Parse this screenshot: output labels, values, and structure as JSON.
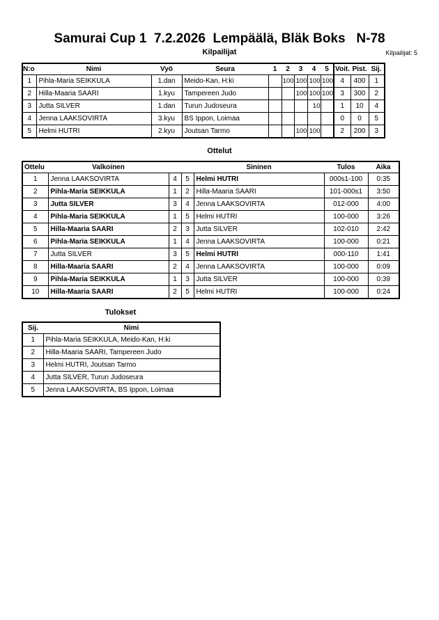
{
  "title": "Samurai Cup 1  7.2.2026  Lempäälä, Bläk Boks   N-78",
  "competitors_heading": "Kilpailijat",
  "competitors_count": "Kilpailijat: 5",
  "competitors": {
    "headers": [
      "N:o",
      "Nimi",
      "Vyö",
      "Seura",
      "1",
      "2",
      "3",
      "4",
      "5",
      "Voit.",
      "Pist.",
      "Sij."
    ],
    "rows": [
      {
        "no": "1",
        "name": "Pihla-Maria SEIKKULA",
        "belt": "1.dan",
        "club": "Meido-Kan, H:ki",
        "s": [
          "",
          "100",
          "100",
          "100",
          "100"
        ],
        "wins": "4",
        "points": "400",
        "rank": "1"
      },
      {
        "no": "2",
        "name": "Hilla-Maaria SAARI",
        "belt": "1.kyu",
        "club": "Tampereen Judo",
        "s": [
          "",
          "",
          "100",
          "100",
          "100"
        ],
        "wins": "3",
        "points": "300",
        "rank": "2"
      },
      {
        "no": "3",
        "name": "Jutta SILVER",
        "belt": "1.dan",
        "club": "Turun Judoseura",
        "s": [
          "",
          "",
          "",
          "10",
          ""
        ],
        "wins": "1",
        "points": "10",
        "rank": "4"
      },
      {
        "no": "4",
        "name": "Jenna LAAKSOVIRTA",
        "belt": "3.kyu",
        "club": "BS Ippon, Loimaa",
        "s": [
          "",
          "",
          "",
          "",
          ""
        ],
        "wins": "0",
        "points": "0",
        "rank": "5"
      },
      {
        "no": "5",
        "name": "Helmi HUTRI",
        "belt": "2.kyu",
        "club": "Joutsan Tarmo",
        "s": [
          "",
          "",
          "100",
          "100",
          ""
        ],
        "wins": "2",
        "points": "200",
        "rank": "3"
      }
    ]
  },
  "matches_heading": "Ottelut",
  "matches": {
    "headers": [
      "Ottelu",
      "Valkoinen",
      "Sininen",
      "Tulos",
      "Aika"
    ],
    "rows": [
      {
        "no": "1",
        "white": "Jenna LAAKSOVIRTA",
        "wn": "4",
        "bn": "5",
        "blue": "Helmi HUTRI",
        "result": "000s1-100",
        "time": "0:35",
        "winner": "blue"
      },
      {
        "no": "2",
        "white": "Pihla-Maria SEIKKULA",
        "wn": "1",
        "bn": "2",
        "blue": "Hilla-Maaria SAARI",
        "result": "101-000s1",
        "time": "3:50",
        "winner": "white"
      },
      {
        "no": "3",
        "white": "Jutta SILVER",
        "wn": "3",
        "bn": "4",
        "blue": "Jenna LAAKSOVIRTA",
        "result": "012-000",
        "time": "4:00",
        "winner": "white"
      },
      {
        "no": "4",
        "white": "Pihla-Maria SEIKKULA",
        "wn": "1",
        "bn": "5",
        "blue": "Helmi HUTRI",
        "result": "100-000",
        "time": "3:26",
        "winner": "white"
      },
      {
        "no": "5",
        "white": "Hilla-Maaria SAARI",
        "wn": "2",
        "bn": "3",
        "blue": "Jutta SILVER",
        "result": "102-010",
        "time": "2:42",
        "winner": "white"
      },
      {
        "no": "6",
        "white": "Pihla-Maria SEIKKULA",
        "wn": "1",
        "bn": "4",
        "blue": "Jenna LAAKSOVIRTA",
        "result": "100-000",
        "time": "0:21",
        "winner": "white"
      },
      {
        "no": "7",
        "white": "Jutta SILVER",
        "wn": "3",
        "bn": "5",
        "blue": "Helmi HUTRI",
        "result": "000-110",
        "time": "1:41",
        "winner": "blue"
      },
      {
        "no": "8",
        "white": "Hilla-Maaria SAARI",
        "wn": "2",
        "bn": "4",
        "blue": "Jenna LAAKSOVIRTA",
        "result": "100-000",
        "time": "0:09",
        "winner": "white"
      },
      {
        "no": "9",
        "white": "Pihla-Maria SEIKKULA",
        "wn": "1",
        "bn": "3",
        "blue": "Jutta SILVER",
        "result": "100-000",
        "time": "0:39",
        "winner": "white"
      },
      {
        "no": "10",
        "white": "Hilla-Maaria SAARI",
        "wn": "2",
        "bn": "5",
        "blue": "Helmi HUTRI",
        "result": "100-000",
        "time": "0:24",
        "winner": "white"
      }
    ]
  },
  "results_heading": "Tulokset",
  "results": {
    "headers": [
      "Sij.",
      "Nimi"
    ],
    "rows": [
      {
        "rank": "1",
        "name": "Pihla-Maria SEIKKULA, Meido-Kan, H:ki"
      },
      {
        "rank": "2",
        "name": "Hilla-Maaria SAARI, Tampereen Judo"
      },
      {
        "rank": "3",
        "name": "Helmi HUTRI, Joutsan Tarmo"
      },
      {
        "rank": "4",
        "name": "Jutta SILVER, Turun Judoseura"
      },
      {
        "rank": "5",
        "name": "Jenna LAAKSOVIRTA, BS Ippon, Loimaa"
      }
    ]
  }
}
